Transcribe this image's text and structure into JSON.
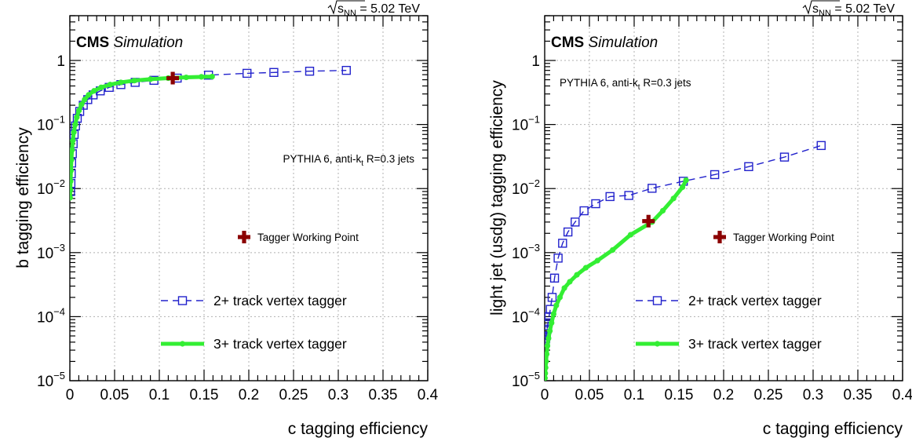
{
  "chart_data": [
    {
      "type": "line",
      "title": "",
      "xlabel": "c tagging efficiency",
      "ylabel": "b tagging efficiency",
      "energy_label": {
        "prefix": "s",
        "subscript": "NN",
        "value": "= 5.02 TeV"
      },
      "cms_label": "CMS",
      "simulation_label": "Simulation",
      "generator_label": {
        "base": "PYTHIA 6, anti-k",
        "subscript": "t",
        "rest": " R=0.3 jets"
      },
      "xlim": [
        0,
        0.4
      ],
      "ylim": [
        1e-05,
        5
      ],
      "yscale": "log",
      "grid": true,
      "legend_position": "bottom-right",
      "x_ticks": [
        "0",
        "0.05",
        "0.1",
        "0.15",
        "0.2",
        "0.25",
        "0.3",
        "0.35",
        "0.4"
      ],
      "y_ticks": [
        {
          "value": 1e-05,
          "base": "10",
          "exp": "−5"
        },
        {
          "value": 0.0001,
          "base": "10",
          "exp": "−4"
        },
        {
          "value": 0.001,
          "base": "10",
          "exp": "−3"
        },
        {
          "value": 0.01,
          "base": "10",
          "exp": "−2"
        },
        {
          "value": 0.1,
          "base": "10",
          "exp": "−1"
        },
        {
          "value": 1,
          "base": "1",
          "exp": ""
        }
      ],
      "series": [
        {
          "name": "2+ track vertex tagger",
          "color": "#2222cc",
          "style": "dashed-open-square",
          "x": [
            0.0008,
            0.0012,
            0.0016,
            0.002,
            0.0028,
            0.0037,
            0.0048,
            0.0063,
            0.0083,
            0.011,
            0.015,
            0.02,
            0.026,
            0.034,
            0.044,
            0.057,
            0.073,
            0.094,
            0.12,
            0.155,
            0.198,
            0.228,
            0.268,
            0.309
          ],
          "y": [
            0.009,
            0.012,
            0.017,
            0.025,
            0.035,
            0.05,
            0.07,
            0.095,
            0.125,
            0.16,
            0.2,
            0.245,
            0.29,
            0.335,
            0.38,
            0.42,
            0.455,
            0.49,
            0.53,
            0.59,
            0.63,
            0.65,
            0.68,
            0.7
          ]
        },
        {
          "name": "3+ track vertex tagger",
          "color": "#33ee33",
          "style": "solid-filled-circle",
          "x": [
            0.0003,
            0.0005,
            0.0008,
            0.0012,
            0.0017,
            0.0024,
            0.0033,
            0.0045,
            0.006,
            0.0078,
            0.0102,
            0.013,
            0.0165,
            0.021,
            0.027,
            0.035,
            0.045,
            0.057,
            0.072,
            0.09,
            0.11,
            0.13,
            0.147,
            0.159
          ],
          "y": [
            0.0072,
            0.0095,
            0.013,
            0.019,
            0.028,
            0.04,
            0.056,
            0.076,
            0.1,
            0.13,
            0.165,
            0.205,
            0.245,
            0.29,
            0.335,
            0.38,
            0.42,
            0.455,
            0.485,
            0.51,
            0.53,
            0.545,
            0.555,
            0.56
          ]
        }
      ],
      "working_point": {
        "name": "Tagger Working Point",
        "x": 0.115,
        "y": 0.53,
        "color": "#8b0000"
      }
    },
    {
      "type": "line",
      "title": "",
      "xlabel": "c tagging efficiency",
      "ylabel": "light jet (usdg) tagging efficiency",
      "energy_label": {
        "prefix": "s",
        "subscript": "NN",
        "value": "= 5.02 TeV"
      },
      "cms_label": "CMS",
      "simulation_label": "Simulation",
      "generator_label": {
        "base": "PYTHIA 6, anti-k",
        "subscript": "t",
        "rest": " R=0.3 jets"
      },
      "xlim": [
        0,
        0.4
      ],
      "ylim": [
        1e-05,
        5
      ],
      "yscale": "log",
      "grid": true,
      "legend_position": "bottom-right",
      "x_ticks": [
        "0",
        "0.05",
        "0.1",
        "0.15",
        "0.2",
        "0.25",
        "0.3",
        "0.35",
        "0.4"
      ],
      "y_ticks": [
        {
          "value": 1e-05,
          "base": "10",
          "exp": "−5"
        },
        {
          "value": 0.0001,
          "base": "10",
          "exp": "−4"
        },
        {
          "value": 0.001,
          "base": "10",
          "exp": "−3"
        },
        {
          "value": 0.01,
          "base": "10",
          "exp": "−2"
        },
        {
          "value": 0.1,
          "base": "10",
          "exp": "−1"
        },
        {
          "value": 1,
          "base": "1",
          "exp": ""
        }
      ],
      "series": [
        {
          "name": "2+ track vertex tagger",
          "color": "#2222cc",
          "style": "dashed-open-square",
          "x": [
            0.0008,
            0.0012,
            0.0016,
            0.002,
            0.0028,
            0.0037,
            0.0048,
            0.0063,
            0.0083,
            0.011,
            0.015,
            0.02,
            0.026,
            0.034,
            0.044,
            0.057,
            0.073,
            0.094,
            0.12,
            0.155,
            0.19,
            0.228,
            0.268,
            0.309
          ],
          "y": [
            4.3e-05,
            4.6e-05,
            5e-05,
            5.5e-05,
            6.4e-05,
            8e-05,
            0.0001,
            0.00013,
            0.0002,
            0.0004,
            0.00082,
            0.0014,
            0.0021,
            0.003,
            0.0045,
            0.0058,
            0.0075,
            0.0078,
            0.0101,
            0.013,
            0.0165,
            0.022,
            0.031,
            0.047
          ]
        },
        {
          "name": "3+ track vertex tagger",
          "color": "#33ee33",
          "style": "solid-filled-circle",
          "x": [
            0.0003,
            0.0006,
            0.001,
            0.0015,
            0.0022,
            0.0031,
            0.0043,
            0.0058,
            0.0077,
            0.01,
            0.013,
            0.017,
            0.022,
            0.028,
            0.036,
            0.046,
            0.059,
            0.076,
            0.096,
            0.12,
            0.132,
            0.144,
            0.154,
            0.158
          ],
          "y": [
            1.1e-05,
            1.3e-05,
            1.6e-05,
            2e-05,
            2.6e-05,
            3.5e-05,
            4.6e-05,
            6e-05,
            8e-05,
            0.00011,
            0.00015,
            0.0002,
            0.00028,
            0.00035,
            0.00045,
            0.00058,
            0.00075,
            0.0011,
            0.0019,
            0.003,
            0.0045,
            0.007,
            0.0105,
            0.0135
          ]
        }
      ],
      "working_point": {
        "name": "Tagger Working Point",
        "x": 0.116,
        "y": 0.0031,
        "color": "#8b0000"
      }
    }
  ]
}
